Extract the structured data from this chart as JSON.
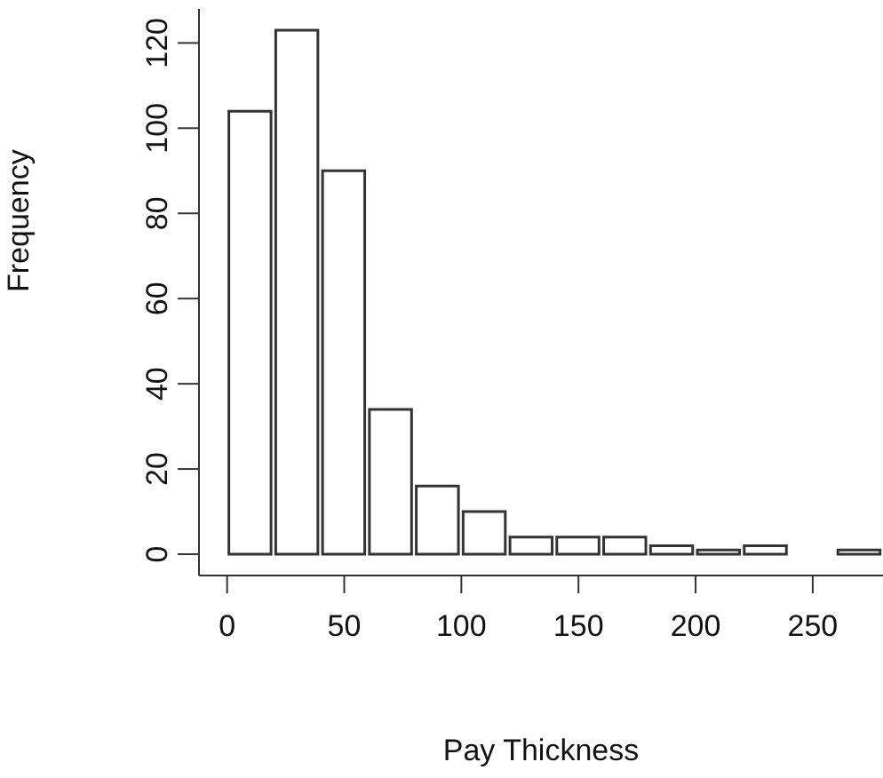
{
  "chart_data": {
    "type": "histogram",
    "xlabel": "Pay Thickness",
    "ylabel": "Frequency",
    "bins": [
      0,
      20,
      40,
      60,
      80,
      100,
      120,
      140,
      160,
      180,
      200,
      220,
      240,
      260,
      280
    ],
    "values": [
      104,
      123,
      90,
      34,
      16,
      10,
      4,
      4,
      4,
      2,
      1,
      2,
      0,
      1
    ],
    "color": "#ffffff",
    "xlim": [
      -12,
      280
    ],
    "xticks": [
      0,
      50,
      100,
      150,
      200,
      250
    ],
    "ylim": [
      -5,
      128
    ],
    "yticks": [
      0,
      20,
      40,
      60,
      80,
      100,
      120
    ],
    "grid": false
  }
}
